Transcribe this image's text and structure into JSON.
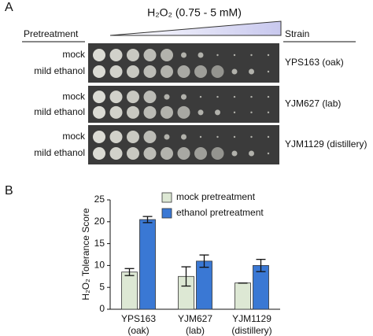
{
  "panel_a": {
    "label": "A",
    "gradient_label": "H₂O₂ (0.75 - 5 mM)",
    "left_header": "Pretreatment",
    "right_header": "Strain",
    "rows": [
      [
        "mock",
        "mild ethanol"
      ],
      [
        "mock",
        "mild ethanol"
      ],
      [
        "mock",
        "mild ethanol"
      ]
    ],
    "strains": [
      "YPS163 (oak)",
      "YJM627 (lab)",
      "YJM1129 (distillery)"
    ]
  },
  "chart_data": {
    "type": "bar",
    "panel_label": "B",
    "y_label": "H₂O₂ Tolerance Score",
    "categories": [
      [
        "YPS163",
        "(oak)"
      ],
      [
        "YJM627",
        "(lab)"
      ],
      [
        "YJM1129",
        "(distillery)"
      ]
    ],
    "series": [
      {
        "name": "mock pretreatment",
        "color": "#dde8d4",
        "values": [
          8.5,
          7.5,
          6
        ],
        "errors": [
          0.8,
          2.2,
          0
        ]
      },
      {
        "name": "ethanol pretreatment",
        "color": "#3a78d4",
        "values": [
          20.5,
          11,
          10
        ],
        "errors": [
          0.7,
          1.4,
          1.4
        ]
      }
    ],
    "ylim": [
      0,
      25
    ],
    "yticks": [
      0,
      5,
      10,
      15,
      20,
      25
    ]
  }
}
